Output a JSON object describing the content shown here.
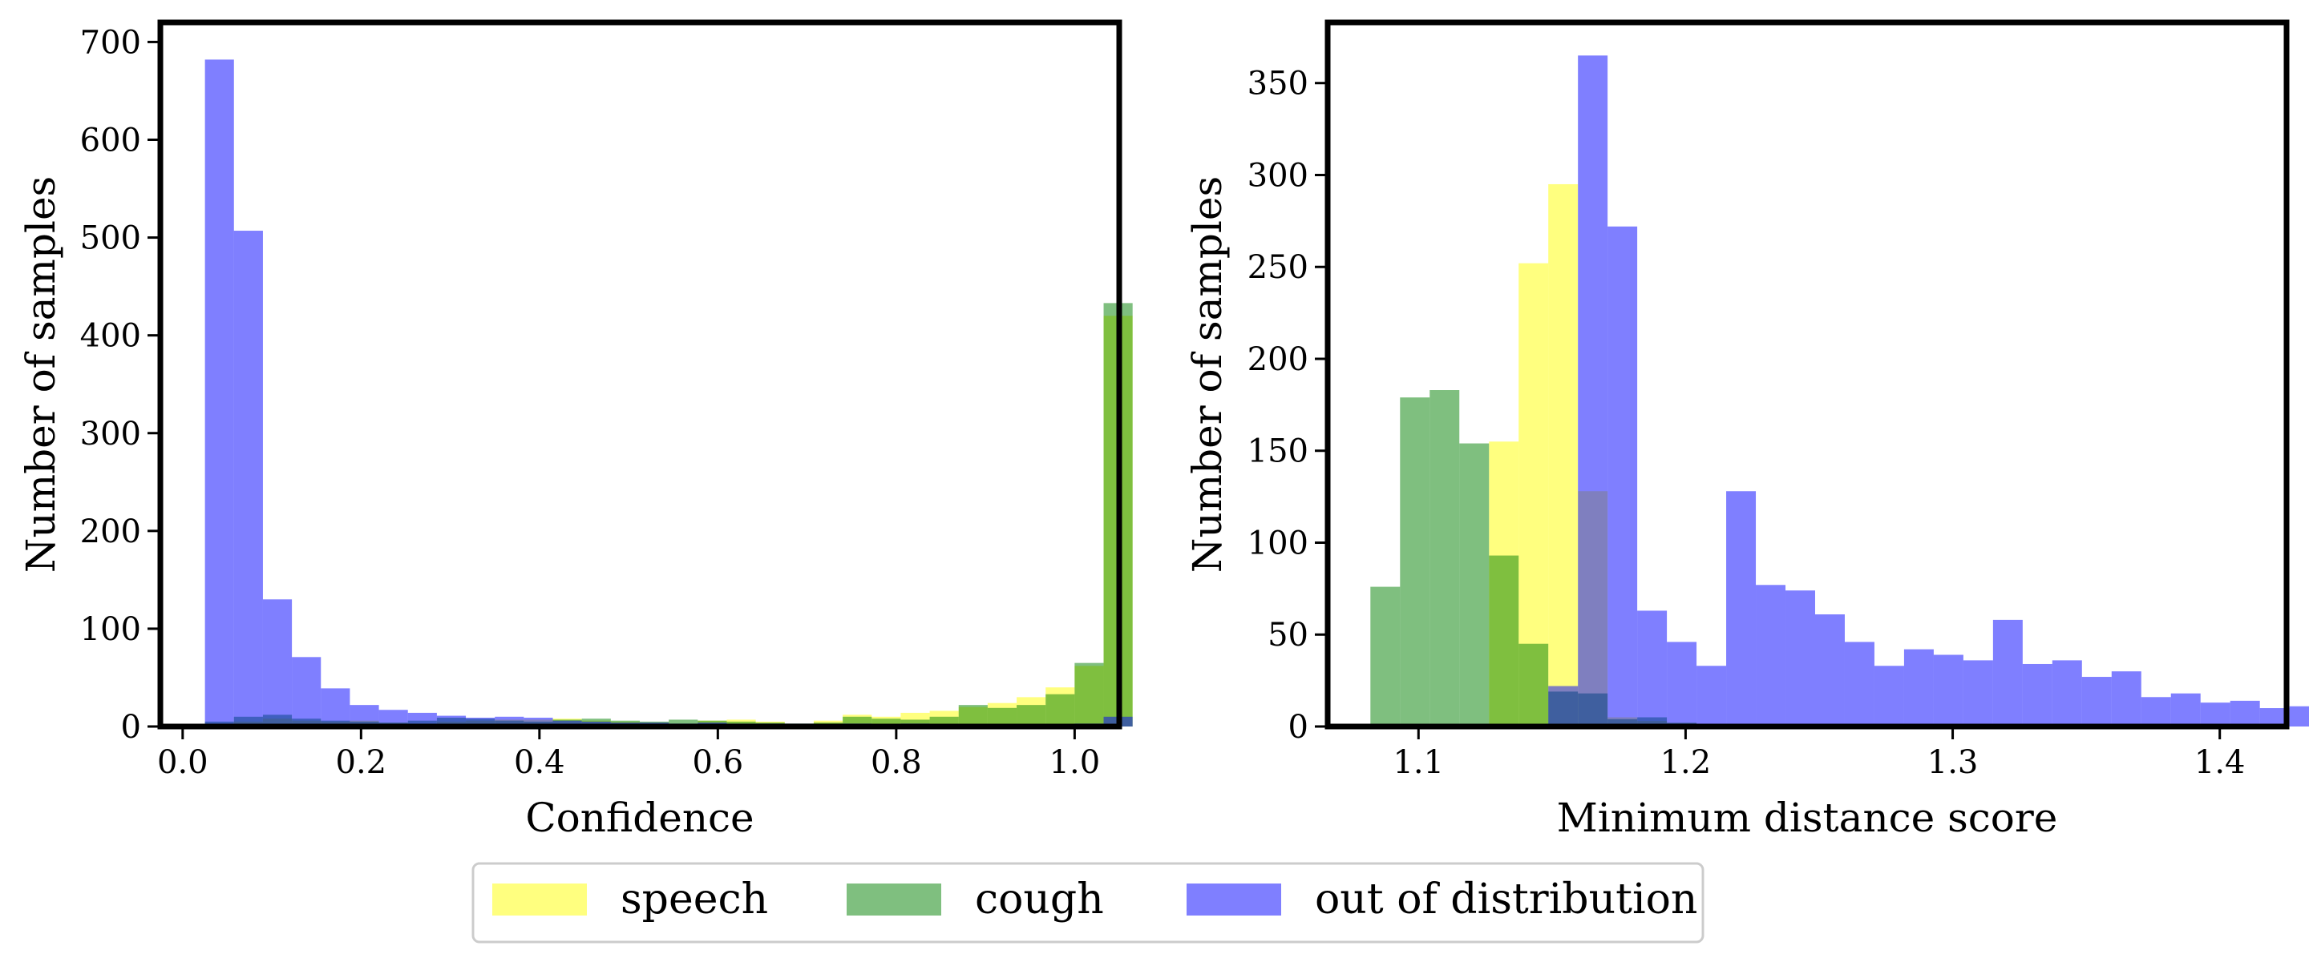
{
  "legend": {
    "entries": [
      {
        "label": "speech",
        "color": "#ffff00",
        "alpha": 0.5
      },
      {
        "label": "cough",
        "color": "#008000",
        "alpha": 0.5
      },
      {
        "label": "out of distribution",
        "color": "#0000ff",
        "alpha": 0.5
      }
    ],
    "placement": "bottom-center"
  },
  "chart_data": [
    {
      "type": "histogram",
      "xlabel": "Confidence",
      "ylabel": "Number of samples",
      "xlim": [
        -0.025,
        1.05
      ],
      "ylim": [
        0,
        720
      ],
      "xticks": [
        0.0,
        0.2,
        0.4,
        0.6,
        0.8,
        1.0
      ],
      "xtick_labels": [
        "0.0",
        "0.2",
        "0.4",
        "0.6",
        "0.8",
        "1.0"
      ],
      "yticks": [
        0,
        100,
        200,
        300,
        400,
        500,
        600,
        700
      ],
      "ytick_labels": [
        "0",
        "100",
        "200",
        "300",
        "400",
        "500",
        "600",
        "700"
      ],
      "bin_start": 0.025,
      "bin_width": 0.0325,
      "series": [
        {
          "name": "speech",
          "color": "#ffff00",
          "values": [
            3,
            5,
            8,
            6,
            5,
            6,
            4,
            3,
            5,
            6,
            7,
            7,
            8,
            6,
            5,
            4,
            3,
            6,
            7,
            5,
            3,
            6,
            12,
            10,
            14,
            16,
            20,
            24,
            30,
            40,
            62,
            420
          ]
        },
        {
          "name": "cough",
          "color": "#008000",
          "values": [
            5,
            10,
            12,
            8,
            6,
            5,
            4,
            6,
            9,
            8,
            6,
            5,
            7,
            8,
            6,
            5,
            7,
            6,
            5,
            4,
            3,
            4,
            10,
            8,
            7,
            10,
            22,
            19,
            22,
            33,
            65,
            433
          ]
        },
        {
          "name": "out of distribution",
          "color": "#0000ff",
          "values": [
            682,
            507,
            130,
            71,
            39,
            22,
            17,
            14,
            11,
            9,
            10,
            9,
            6,
            5,
            4,
            4,
            3,
            4,
            3,
            3,
            3,
            2,
            3,
            2,
            3,
            2,
            2,
            2,
            2,
            2,
            3,
            10
          ]
        }
      ]
    },
    {
      "type": "histogram",
      "xlabel": "Minimum distance score",
      "ylabel": "Number of samples",
      "xlim": [
        1.066,
        1.425
      ],
      "ylim": [
        0,
        383
      ],
      "xticks": [
        1.1,
        1.2,
        1.3,
        1.4
      ],
      "xtick_labels": [
        "1.1",
        "1.2",
        "1.3",
        "1.4"
      ],
      "yticks": [
        0,
        50,
        100,
        150,
        200,
        250,
        300,
        350
      ],
      "ytick_labels": [
        "0",
        "50",
        "100",
        "150",
        "200",
        "250",
        "300",
        "350"
      ],
      "bin_start": 1.082,
      "bin_width": 0.0111,
      "series": [
        {
          "name": "speech",
          "color": "#ffff00",
          "values": [
            0,
            0,
            0,
            0,
            155,
            252,
            295,
            128,
            5,
            3,
            2,
            1,
            0,
            0,
            0,
            0,
            0,
            0,
            0,
            0,
            0,
            0,
            0,
            0,
            0,
            0,
            0,
            0,
            0,
            0
          ]
        },
        {
          "name": "cough",
          "color": "#008000",
          "values": [
            76,
            179,
            183,
            154,
            93,
            45,
            19,
            18,
            4,
            5,
            2,
            0,
            0,
            0,
            0,
            0,
            0,
            0,
            0,
            0,
            0,
            0,
            0,
            0,
            0,
            0,
            0,
            0,
            0,
            0
          ]
        },
        {
          "name": "out of distribution",
          "color": "#0000ff",
          "values": [
            0,
            0,
            0,
            0,
            0,
            0,
            22,
            365,
            272,
            63,
            46,
            33,
            128,
            77,
            74,
            61,
            46,
            33,
            42,
            39,
            36,
            58,
            34,
            36,
            27,
            30,
            16,
            18,
            13,
            14,
            10,
            11
          ]
        }
      ]
    }
  ]
}
